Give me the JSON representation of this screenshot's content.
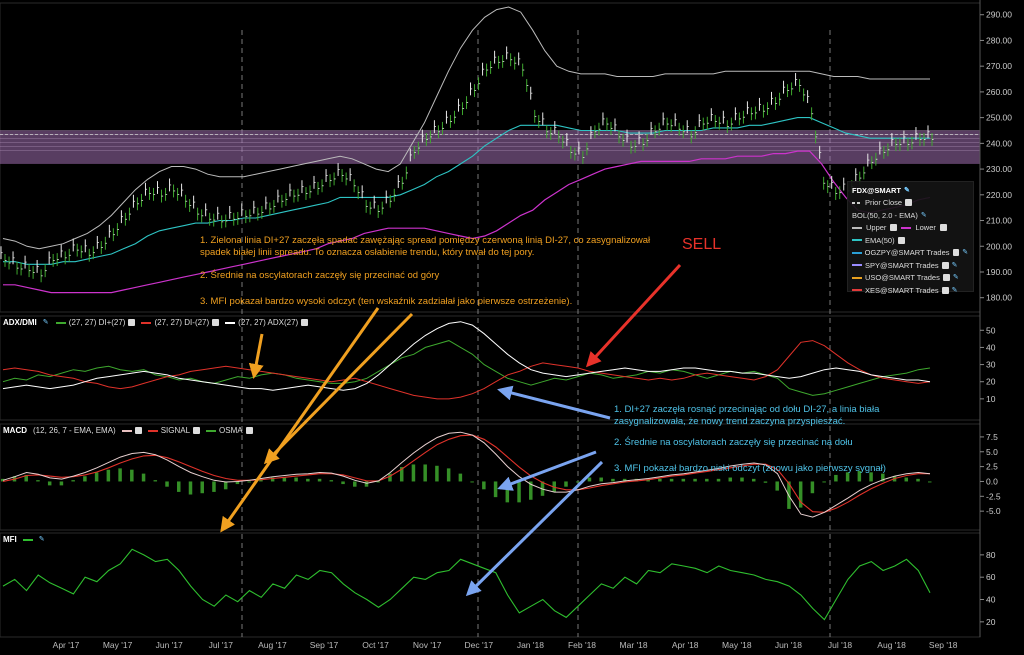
{
  "price_panel": {
    "legend": {
      "title": "FDX@SMART",
      "items": [
        {
          "label": "Prior Close",
          "color": "#cccccc",
          "dashed": true
        },
        {
          "label": "BOL(50, 2.0 - EMA)",
          "color": "",
          "dashed": false
        },
        {
          "label": "Upper",
          "color": "#bbbbbb",
          "dashed": false
        },
        {
          "label": "Lower",
          "color": "#cc33cc",
          "dashed": false
        },
        {
          "label": "EMA(50)",
          "color": "#2ec4c4",
          "dashed": false
        },
        {
          "label": "OGZPY@SMART Trades",
          "color": "#2a9fd6",
          "dashed": false
        },
        {
          "label": "SPY@SMART Trades",
          "color": "#9a8cff",
          "dashed": false
        },
        {
          "label": "USO@SMART Trades",
          "color": "#e8a020",
          "dashed": false
        },
        {
          "label": "XES@SMART Trades",
          "color": "#e23a3a",
          "dashed": false
        }
      ]
    }
  },
  "adx_panel": {
    "name": "ADX/DMI",
    "items": [
      {
        "label": "(27, 27) DI+(27)",
        "color": "#3ea82e"
      },
      {
        "label": "(27, 27) DI-(27)",
        "color": "#e0322a"
      },
      {
        "label": "(27, 27) ADX(27)",
        "color": "#ffffff"
      }
    ]
  },
  "macd_panel": {
    "name": "MACD",
    "params": "(12, 26, 7 - EMA, EMA)",
    "items": [
      {
        "label": "SIGNAL",
        "color": "#e0322a"
      },
      {
        "label": "OSMA",
        "color": "#3ea82e"
      }
    ]
  },
  "mfi_panel": {
    "name": "MFI",
    "color": "#2fbf2f"
  },
  "annotations": {
    "orange": [
      "1. Zielona linia DI+27 zaczęła spadać zawężając spread pomiędzy czerwoną linią DI-27, co zasygnalizował spadek białej linii spreadu. To oznacza osłabienie trendu, który trwał do tej pory.",
      "2. Średnie na oscylatorach zaczęły się przecinać od góry",
      "3. MFI pokazał bardzo wysoki odczyt (ten wskaźnik zadziałał jako pierwsze ostrzeżenie)."
    ],
    "sell": "SELL",
    "blue": [
      "1.  DI+27 zaczęła rosnąć przecinając od dołu DI-27, a linia biała zasygnalizowała, że nowy trend zaczyna przyspieszać.",
      "2. Średnie na oscylatorach zaczęły się przecinać na dołu",
      "3. MFI pokazał bardzo niski odczyt (znowu jako pierwszy sygnał)"
    ]
  },
  "chart_data": [
    {
      "type": "candlestick",
      "title": "",
      "x_labels": [
        "Apr '17",
        "May '17",
        "Jun '17",
        "Jul '17",
        "Aug '17",
        "Sep '17",
        "Oct '17",
        "Nov '17",
        "Dec '17",
        "Jan '18",
        "Feb '18",
        "Mar '18",
        "Apr '18",
        "May '18",
        "Jun '18",
        "Jul '18",
        "Aug '18",
        "Sep '18"
      ],
      "y_ticks": [
        "290.00",
        "280.00",
        "270.00",
        "260.00",
        "250.00",
        "240.00",
        "230.00",
        "220.00",
        "210.00",
        "200.00",
        "190.00",
        "180.00"
      ],
      "ylim": [
        176,
        293
      ],
      "close": [
        196,
        193,
        192,
        190,
        196,
        197,
        200,
        198,
        201,
        206,
        212,
        218,
        222,
        221,
        223,
        219,
        214,
        212,
        211,
        212,
        213,
        214,
        216,
        219,
        221,
        222,
        224,
        227,
        229,
        225,
        217,
        215,
        219,
        226,
        238,
        243,
        246,
        250,
        255,
        262,
        270,
        273,
        274,
        270,
        252,
        246,
        244,
        238,
        236,
        246,
        249,
        244,
        240,
        241,
        246,
        249,
        247,
        244,
        249,
        250,
        248,
        251,
        253,
        254,
        257,
        262,
        264,
        253,
        226,
        222,
        223,
        228,
        234,
        238,
        241,
        241,
        243,
        243
      ],
      "ema50": [
        194,
        194,
        193,
        193,
        193,
        194,
        194,
        195,
        196,
        197,
        199,
        201,
        204,
        206,
        207,
        208,
        209,
        209,
        210,
        210,
        211,
        211,
        212,
        213,
        214,
        215,
        216,
        217,
        219,
        219,
        219,
        219,
        219,
        220,
        222,
        224,
        227,
        229,
        232,
        235,
        239,
        242,
        245,
        247,
        247,
        247,
        247,
        246,
        245,
        245,
        245,
        245,
        244,
        244,
        244,
        245,
        245,
        245,
        245,
        246,
        246,
        246,
        247,
        247,
        248,
        249,
        250,
        250,
        248,
        246,
        244,
        243,
        242,
        242,
        242,
        242,
        242,
        242
      ],
      "upper": [
        203,
        202,
        200,
        199,
        200,
        201,
        203,
        205,
        208,
        212,
        217,
        222,
        226,
        229,
        231,
        231,
        230,
        228,
        227,
        227,
        227,
        228,
        229,
        230,
        231,
        232,
        233,
        234,
        235,
        234,
        232,
        230,
        229,
        232,
        240,
        248,
        258,
        268,
        277,
        284,
        289,
        292,
        293,
        291,
        284,
        276,
        270,
        268,
        267,
        267,
        267,
        266,
        266,
        266,
        266,
        267,
        267,
        267,
        267,
        267,
        268,
        268,
        268,
        268,
        268,
        268,
        268,
        268,
        267,
        266,
        266,
        266,
        265,
        265,
        265,
        265,
        265,
        265
      ],
      "lower": [
        185,
        185,
        184,
        183,
        182,
        182,
        182,
        182,
        182,
        182,
        183,
        184,
        185,
        186,
        187,
        188,
        189,
        190,
        191,
        192,
        193,
        194,
        195,
        196,
        197,
        198,
        199,
        201,
        202,
        203,
        205,
        206,
        207,
        207,
        207,
        207,
        206,
        205,
        204,
        203,
        204,
        206,
        209,
        212,
        214,
        218,
        221,
        224,
        226,
        228,
        230,
        231,
        232,
        233,
        233,
        233,
        233,
        233,
        234,
        234,
        234,
        235,
        235,
        235,
        236,
        236,
        237,
        237,
        232,
        225,
        219,
        214,
        213,
        214,
        215,
        216,
        218,
        219
      ],
      "prior_close": 243.5,
      "highlight_band": [
        232,
        245
      ]
    },
    {
      "type": "line",
      "name": "ADX/DMI",
      "y_ticks": [
        "50",
        "40",
        "30",
        "20",
        "10"
      ],
      "ylim": [
        0,
        56
      ],
      "series": [
        {
          "name": "DI+(27)",
          "values": [
            20,
            22,
            21,
            24,
            23,
            25,
            27,
            26,
            28,
            29,
            27,
            26,
            27,
            24,
            23,
            21,
            22,
            20,
            19,
            21,
            23,
            22,
            24,
            25,
            24,
            22,
            21,
            20,
            19,
            19,
            20,
            22,
            26,
            30,
            34,
            36,
            40,
            42,
            44,
            40,
            36,
            30,
            26,
            22,
            20,
            18,
            20,
            22,
            21,
            23,
            25,
            24,
            22,
            23,
            24,
            26,
            25,
            27,
            26,
            24,
            22,
            24,
            26,
            25,
            26,
            24,
            22,
            16,
            14,
            12,
            13,
            15,
            17,
            19,
            21,
            23,
            24,
            25,
            27,
            28
          ]
        },
        {
          "name": "DI-(27)",
          "values": [
            27,
            28,
            27,
            26,
            24,
            23,
            22,
            20,
            19,
            17,
            16,
            17,
            19,
            21,
            23,
            24,
            26,
            27,
            28,
            29,
            28,
            27,
            26,
            25,
            24,
            23,
            22,
            21,
            20,
            21,
            22,
            20,
            18,
            16,
            14,
            12,
            11,
            10,
            10,
            11,
            13,
            16,
            20,
            24,
            26,
            29,
            31,
            30,
            29,
            28,
            26,
            25,
            24,
            23,
            22,
            21,
            22,
            21,
            22,
            24,
            25,
            24,
            23,
            22,
            21,
            23,
            27,
            35,
            43,
            44,
            41,
            36,
            31,
            27,
            24,
            22,
            21,
            20,
            19,
            20
          ]
        },
        {
          "name": "ADX(27)",
          "values": [
            16,
            17,
            18,
            17,
            16,
            17,
            18,
            20,
            22,
            23,
            24,
            25,
            26,
            25,
            24,
            22,
            21,
            20,
            19,
            18,
            17,
            16,
            16,
            15,
            16,
            17,
            18,
            17,
            16,
            15,
            16,
            19,
            24,
            30,
            36,
            42,
            47,
            51,
            54,
            55,
            53,
            48,
            42,
            36,
            31,
            27,
            25,
            24,
            23,
            24,
            25,
            26,
            27,
            28,
            27,
            26,
            26,
            27,
            28,
            28,
            27,
            26,
            26,
            25,
            25,
            24,
            23,
            22,
            23,
            25,
            27,
            28,
            27,
            26,
            24,
            23,
            22,
            21,
            21,
            20
          ]
        }
      ]
    },
    {
      "type": "line",
      "name": "MACD",
      "y_ticks": [
        "7.5",
        "5.0",
        "2.5",
        "0.0",
        "-2.5",
        "-5.0"
      ],
      "ylim": [
        -7.5,
        9
      ],
      "series": [
        {
          "name": "MACD",
          "values": [
            0.2,
            0.8,
            1.5,
            1.2,
            0.6,
            0.4,
            0.9,
            1.5,
            2.3,
            3.2,
            4.1,
            4.7,
            4.9,
            4.5,
            3.6,
            2.5,
            1.5,
            0.8,
            0.2,
            -0.1,
            0.0,
            0.2,
            0.5,
            0.8,
            1.0,
            1.2,
            1.3,
            1.5,
            1.4,
            0.9,
            0.2,
            -0.3,
            0.1,
            1.5,
            3.2,
            4.8,
            6.2,
            7.4,
            8.1,
            8.3,
            7.8,
            6.5,
            4.6,
            2.5,
            0.8,
            -0.5,
            -1.3,
            -1.8,
            -1.8,
            -1.4,
            -0.8,
            -0.4,
            -0.2,
            0.1,
            0.3,
            0.5,
            0.8,
            1.1,
            1.3,
            1.6,
            1.9,
            2.2,
            2.6,
            2.9,
            3.1,
            2.8,
            1.3,
            -2.5,
            -5.5,
            -6.0,
            -5.2,
            -4.0,
            -2.8,
            -1.5,
            -0.5,
            0.3,
            0.9,
            1.3,
            1.5,
            1.3
          ]
        },
        {
          "name": "SIGNAL",
          "values": [
            0.0,
            0.4,
            1.0,
            1.1,
            0.9,
            0.7,
            0.8,
            1.1,
            1.6,
            2.3,
            3.1,
            3.8,
            4.3,
            4.4,
            4.0,
            3.3,
            2.5,
            1.7,
            1.0,
            0.5,
            0.2,
            0.2,
            0.3,
            0.5,
            0.7,
            0.9,
            1.1,
            1.3,
            1.3,
            1.1,
            0.6,
            0.1,
            0.1,
            0.9,
            2.1,
            3.5,
            4.9,
            6.2,
            7.1,
            7.7,
            7.8,
            7.1,
            5.8,
            4.1,
            2.4,
            0.9,
            -0.2,
            -1.0,
            -1.4,
            -1.4,
            -1.1,
            -0.7,
            -0.4,
            -0.1,
            0.1,
            0.3,
            0.6,
            0.9,
            1.1,
            1.4,
            1.7,
            2.0,
            2.3,
            2.6,
            2.9,
            2.9,
            2.0,
            -0.4,
            -3.5,
            -5.1,
            -5.2,
            -4.5,
            -3.5,
            -2.3,
            -1.2,
            -0.3,
            0.5,
            1.0,
            1.3,
            1.3
          ]
        }
      ]
    },
    {
      "type": "line",
      "name": "MFI",
      "y_ticks": [
        "80",
        "60",
        "40",
        "20"
      ],
      "ylim": [
        10,
        96
      ],
      "series": [
        {
          "name": "MFI",
          "values": [
            52,
            58,
            48,
            62,
            55,
            50,
            45,
            60,
            56,
            66,
            72,
            85,
            80,
            74,
            76,
            66,
            52,
            40,
            34,
            44,
            38,
            48,
            42,
            54,
            50,
            62,
            58,
            66,
            64,
            54,
            46,
            40,
            33,
            40,
            50,
            60,
            58,
            64,
            66,
            76,
            72,
            68,
            64,
            44,
            28,
            34,
            40,
            30,
            24,
            34,
            44,
            54,
            50,
            60,
            54,
            66,
            64,
            72,
            70,
            68,
            64,
            70,
            66,
            64,
            62,
            58,
            56,
            52,
            44,
            32,
            22,
            40,
            58,
            70,
            74,
            66,
            70,
            76,
            66,
            46
          ]
        }
      ]
    }
  ]
}
